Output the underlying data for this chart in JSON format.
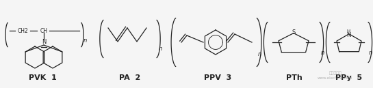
{
  "background_color": "#f5f5f5",
  "labels": [
    "PVK  1",
    "PA  2",
    "PPV  3",
    "PTh",
    "PPy  5"
  ],
  "label_fontsize": 8,
  "figsize": [
    5.45,
    1.29
  ],
  "dpi": 100,
  "lc": "#222222",
  "lw": 0.9
}
